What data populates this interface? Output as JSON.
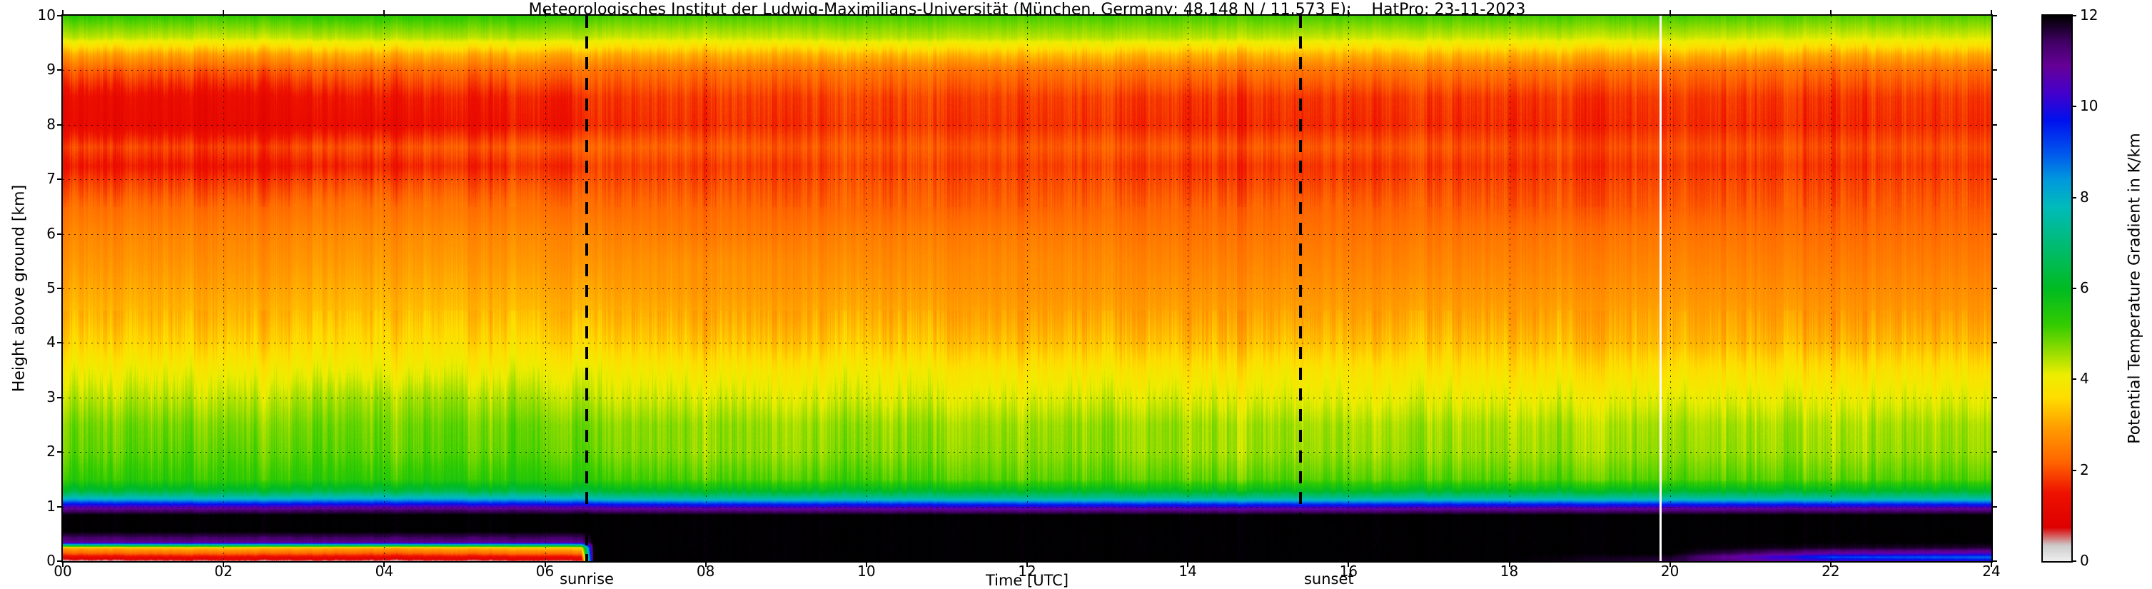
{
  "chart_data": {
    "type": "heatmap",
    "title": "Meteorologisches Institut der Ludwig-Maximilians-Universität (München, Germany; 48.148 N / 11.573 E):    HatPro: 23-11-2023",
    "xlabel": "Time [UTC]",
    "ylabel": "Height above ground [km]",
    "colorbar_label": "Potential Temperature Gradient in K/km",
    "xlim": [
      0,
      24
    ],
    "ylim": [
      0,
      10
    ],
    "clim": [
      0,
      12
    ],
    "grid": true,
    "x_ticks": [
      {
        "v": 0,
        "label": "00"
      },
      {
        "v": 2,
        "label": "02"
      },
      {
        "v": 4,
        "label": "04"
      },
      {
        "v": 6,
        "label": "06"
      },
      {
        "v": 8,
        "label": "08"
      },
      {
        "v": 10,
        "label": "10"
      },
      {
        "v": 12,
        "label": "12"
      },
      {
        "v": 14,
        "label": "14"
      },
      {
        "v": 16,
        "label": "16"
      },
      {
        "v": 18,
        "label": "18"
      },
      {
        "v": 20,
        "label": "20"
      },
      {
        "v": 22,
        "label": "22"
      },
      {
        "v": 24,
        "label": "24"
      }
    ],
    "y_ticks": [
      {
        "v": 0,
        "label": "0"
      },
      {
        "v": 1,
        "label": "1"
      },
      {
        "v": 2,
        "label": "2"
      },
      {
        "v": 3,
        "label": "3"
      },
      {
        "v": 4,
        "label": "4"
      },
      {
        "v": 5,
        "label": "5"
      },
      {
        "v": 6,
        "label": "6"
      },
      {
        "v": 7,
        "label": "7"
      },
      {
        "v": 8,
        "label": "8"
      },
      {
        "v": 9,
        "label": "9"
      },
      {
        "v": 10,
        "label": "10"
      }
    ],
    "colorbar_ticks": [
      {
        "v": 0,
        "label": "0"
      },
      {
        "v": 2,
        "label": "2"
      },
      {
        "v": 4,
        "label": "4"
      },
      {
        "v": 6,
        "label": "6"
      },
      {
        "v": 8,
        "label": "8"
      },
      {
        "v": 10,
        "label": "10"
      },
      {
        "v": 12,
        "label": "12"
      }
    ],
    "sun_lines": [
      {
        "label": "sunrise",
        "t": 6.52
      },
      {
        "label": "sunset",
        "t": 15.4
      }
    ],
    "gap_line_t": 19.87,
    "colormap": [
      {
        "v": 0.0,
        "c": "#f0f0f0"
      },
      {
        "v": 0.35,
        "c": "#cccccc"
      },
      {
        "v": 0.75,
        "c": "#dd0000"
      },
      {
        "v": 1.5,
        "c": "#ee1100"
      },
      {
        "v": 2.2,
        "c": "#ff6600"
      },
      {
        "v": 2.9,
        "c": "#ff9900"
      },
      {
        "v": 3.6,
        "c": "#ffdd00"
      },
      {
        "v": 4.1,
        "c": "#eeee00"
      },
      {
        "v": 4.6,
        "c": "#99dd00"
      },
      {
        "v": 5.2,
        "c": "#33cc00"
      },
      {
        "v": 6.0,
        "c": "#00bb22"
      },
      {
        "v": 7.0,
        "c": "#00bb77"
      },
      {
        "v": 7.8,
        "c": "#00bbbb"
      },
      {
        "v": 8.4,
        "c": "#0099dd"
      },
      {
        "v": 9.0,
        "c": "#0055ee"
      },
      {
        "v": 9.7,
        "c": "#0011ee"
      },
      {
        "v": 10.3,
        "c": "#4400cc"
      },
      {
        "v": 10.9,
        "c": "#660099"
      },
      {
        "v": 11.4,
        "c": "#44006a"
      },
      {
        "v": 12.0,
        "c": "#000000"
      }
    ],
    "heights": [
      0,
      0.08,
      0.15,
      0.25,
      0.35,
      0.55,
      0.85,
      0.95,
      1.05,
      1.15,
      1.3,
      1.5,
      2,
      2.5,
      3,
      3.5,
      4,
      4.5,
      5,
      5.5,
      6,
      6.5,
      7,
      7.25,
      7.6,
      8,
      8.5,
      9,
      9.3,
      9.6,
      10
    ],
    "columns": [
      {
        "t": 0,
        "values": [
          0.3,
          1.2,
          2.2,
          3.2,
          11,
          12,
          12,
          11.2,
          9.8,
          8,
          6.3,
          5.4,
          5,
          4.9,
          4.5,
          4.1,
          3.6,
          3.3,
          3.1,
          2.9,
          2.7,
          2.4,
          1.9,
          1.6,
          2,
          1.3,
          1.4,
          2.2,
          3.1,
          4.4,
          5.3
        ]
      },
      {
        "t": 2,
        "values": [
          0.4,
          1.3,
          2.3,
          3.4,
          11,
          12,
          12,
          11.2,
          9.7,
          7.9,
          6.2,
          5.3,
          5,
          4.8,
          4.4,
          4,
          3.5,
          3.2,
          3,
          2.8,
          2.6,
          2.3,
          1.8,
          1.5,
          1.9,
          1.2,
          1.3,
          2.1,
          3,
          4.3,
          5.2
        ]
      },
      {
        "t": 4,
        "values": [
          0.3,
          1.2,
          2.1,
          3.1,
          11,
          12,
          12,
          11.3,
          9.8,
          8.1,
          6.3,
          5.3,
          4.9,
          4.8,
          4.5,
          4,
          3.6,
          3.3,
          3.1,
          2.9,
          2.7,
          2.4,
          1.9,
          1.6,
          2,
          1.3,
          1.5,
          2.2,
          3.1,
          4.4,
          5.3
        ]
      },
      {
        "t": 6.45,
        "values": [
          0.4,
          1.3,
          2.4,
          3.5,
          11,
          12,
          12,
          11.2,
          9.7,
          8,
          6.2,
          5.3,
          4.9,
          4.8,
          4.4,
          4,
          3.5,
          3.2,
          3,
          2.8,
          2.6,
          2.3,
          1.9,
          1.7,
          2.1,
          1.5,
          1.6,
          2.3,
          3.1,
          4.4,
          5.2
        ]
      },
      {
        "t": 6.6,
        "values": [
          12,
          12,
          12,
          12,
          12,
          12,
          12,
          11.1,
          9.6,
          7.7,
          6.1,
          5.2,
          4.8,
          4.7,
          4.3,
          4,
          3.5,
          3.2,
          3,
          2.8,
          2.6,
          2.3,
          2,
          1.9,
          2.2,
          1.7,
          1.8,
          2.3,
          3.1,
          4.3,
          5.1
        ]
      },
      {
        "t": 8,
        "values": [
          12,
          12,
          12,
          12,
          12,
          12,
          12,
          11.1,
          9.5,
          7.6,
          6,
          5.1,
          4.7,
          4.7,
          4.3,
          3.9,
          3.4,
          3.1,
          2.9,
          2.8,
          2.5,
          2.3,
          2,
          1.9,
          2.2,
          1.8,
          1.9,
          2.4,
          3.2,
          4.3,
          5.1
        ]
      },
      {
        "t": 10,
        "values": [
          12,
          12,
          12,
          12,
          12,
          12,
          12,
          11,
          9.5,
          7.6,
          6,
          5.1,
          4.7,
          4.6,
          4.2,
          3.9,
          3.4,
          3.1,
          2.9,
          2.7,
          2.5,
          2.2,
          2,
          1.9,
          2.1,
          1.8,
          1.9,
          2.4,
          3.2,
          4.4,
          5.1
        ]
      },
      {
        "t": 12,
        "values": [
          12,
          12,
          12,
          12,
          12,
          12,
          12,
          11,
          9.4,
          7.5,
          6,
          5,
          4.7,
          4.6,
          4.2,
          3.8,
          3.3,
          3,
          2.8,
          2.7,
          2.5,
          2.2,
          2,
          1.9,
          2.1,
          1.8,
          1.9,
          2.4,
          3.3,
          4.4,
          5.1
        ]
      },
      {
        "t": 14,
        "values": [
          12,
          12,
          12,
          12,
          12,
          12,
          12,
          11,
          9.4,
          7.5,
          5.9,
          5,
          4.6,
          4.6,
          4.2,
          3.8,
          3.3,
          3,
          2.8,
          2.6,
          2.4,
          2.2,
          1.9,
          1.8,
          2.1,
          1.7,
          1.8,
          2.4,
          3.2,
          4.4,
          5.1
        ]
      },
      {
        "t": 16,
        "values": [
          12,
          12,
          12,
          12,
          12,
          12,
          12,
          11,
          9.4,
          7.5,
          5.9,
          5,
          4.6,
          4.5,
          4.1,
          3.8,
          3.3,
          3,
          2.8,
          2.6,
          2.4,
          2.2,
          1.9,
          1.8,
          2.1,
          1.7,
          1.8,
          2.4,
          3.2,
          4.3,
          5.1
        ]
      },
      {
        "t": 18,
        "values": [
          12,
          12,
          12,
          12,
          12,
          12,
          12,
          11.1,
          9.5,
          7.6,
          6,
          5,
          4.6,
          4.5,
          4.1,
          3.7,
          3.3,
          3,
          2.8,
          2.6,
          2.4,
          2.1,
          1.9,
          1.8,
          2,
          1.7,
          1.8,
          2.4,
          3.2,
          4.3,
          5.1
        ]
      },
      {
        "t": 20,
        "values": [
          11.6,
          11.8,
          12,
          12,
          12,
          12,
          12,
          11.1,
          9.5,
          7.6,
          6,
          5,
          4.6,
          4.5,
          4.1,
          3.7,
          3.2,
          3,
          2.8,
          2.6,
          2.4,
          2.1,
          1.9,
          1.8,
          2,
          1.7,
          1.8,
          2.3,
          3.2,
          4.3,
          5.1
        ]
      },
      {
        "t": 22,
        "values": [
          10.6,
          9.2,
          10.8,
          11.8,
          12,
          12,
          12,
          11.1,
          9.5,
          7.6,
          6,
          5,
          4.6,
          4.5,
          4.1,
          3.7,
          3.2,
          2.9,
          2.7,
          2.5,
          2.3,
          2.1,
          1.9,
          1.8,
          2,
          1.7,
          1.8,
          2.3,
          3.1,
          4.2,
          5
        ]
      },
      {
        "t": 24,
        "values": [
          10.2,
          8.8,
          10.5,
          11.7,
          12,
          12,
          12,
          11.1,
          9.5,
          7.6,
          6,
          5,
          4.6,
          4.5,
          4.1,
          3.7,
          3.2,
          2.9,
          2.7,
          2.5,
          2.3,
          2.1,
          1.9,
          1.8,
          2,
          1.7,
          1.8,
          2.3,
          3.1,
          4.2,
          5
        ]
      }
    ]
  }
}
